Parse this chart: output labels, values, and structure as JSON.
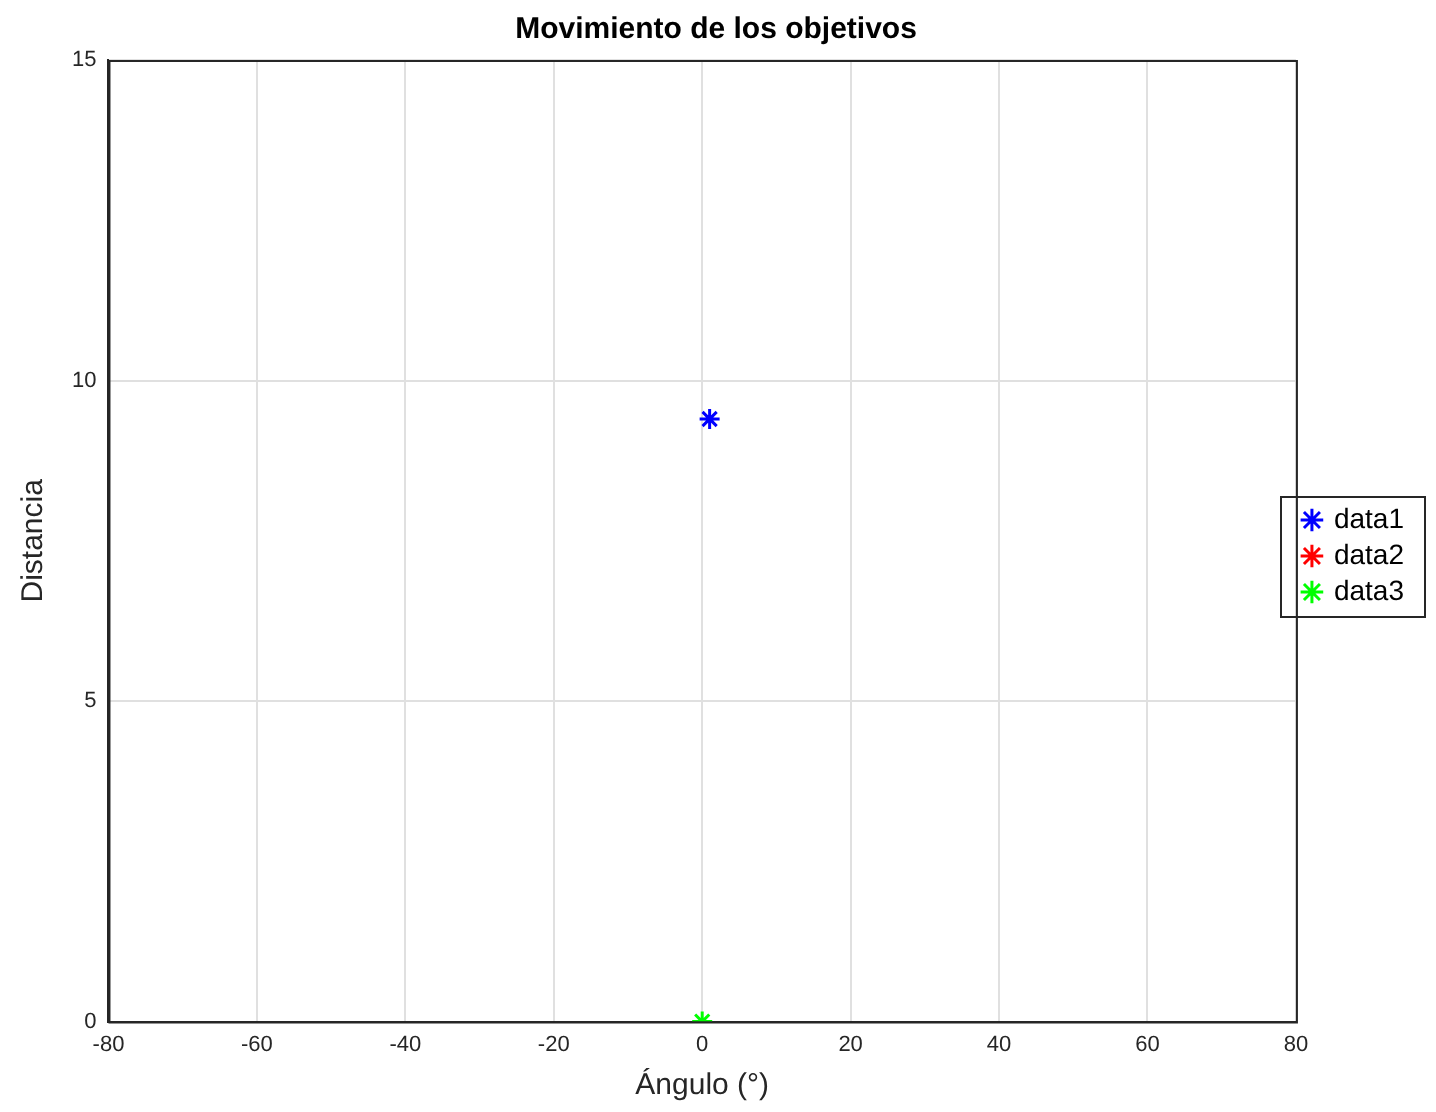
{
  "chart_data": {
    "type": "scatter",
    "title": "Movimiento de los objetivos",
    "xlabel": "Ángulo (°)",
    "ylabel": "Distancia",
    "xlim": [
      -80,
      80
    ],
    "xticks": [
      -80,
      -60,
      -40,
      -20,
      0,
      20,
      40,
      60,
      80
    ],
    "ylim": [
      0,
      15
    ],
    "yticks": [
      0,
      5,
      10,
      15
    ],
    "grid": true,
    "legend": "right",
    "marker": "cross",
    "series": [
      {
        "name": "data1",
        "color": "#0000ff",
        "x": [
          1
        ],
        "values": [
          9.4
        ]
      },
      {
        "name": "data2",
        "color": "#ff0000"
      },
      {
        "name": "data3",
        "color": "#00ff00",
        "x": [
          0
        ],
        "values": [
          0
        ]
      }
    ]
  }
}
